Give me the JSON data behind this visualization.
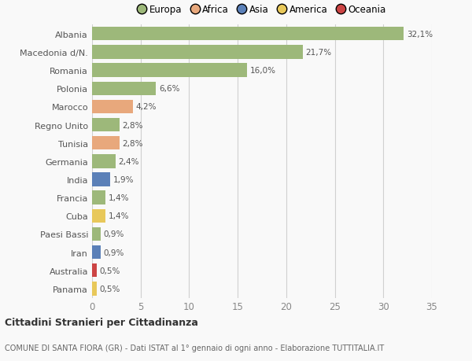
{
  "categories": [
    "Albania",
    "Macedonia d/N.",
    "Romania",
    "Polonia",
    "Marocco",
    "Regno Unito",
    "Tunisia",
    "Germania",
    "India",
    "Francia",
    "Cuba",
    "Paesi Bassi",
    "Iran",
    "Australia",
    "Panama"
  ],
  "values": [
    32.1,
    21.7,
    16.0,
    6.6,
    4.2,
    2.8,
    2.8,
    2.4,
    1.9,
    1.4,
    1.4,
    0.9,
    0.9,
    0.5,
    0.5
  ],
  "labels": [
    "32,1%",
    "21,7%",
    "16,0%",
    "6,6%",
    "4,2%",
    "2,8%",
    "2,8%",
    "2,4%",
    "1,9%",
    "1,4%",
    "1,4%",
    "0,9%",
    "0,9%",
    "0,5%",
    "0,5%"
  ],
  "colors": [
    "#9db87a",
    "#9db87a",
    "#9db87a",
    "#9db87a",
    "#e8a87c",
    "#9db87a",
    "#e8a87c",
    "#9db87a",
    "#5b80b8",
    "#9db87a",
    "#e8c85a",
    "#9db87a",
    "#5b80b8",
    "#cc4444",
    "#e8c85a"
  ],
  "continent_colors": {
    "Europa": "#9db87a",
    "Africa": "#e8a87c",
    "Asia": "#5b80b8",
    "America": "#e8c85a",
    "Oceania": "#cc4444"
  },
  "legend_labels": [
    "Europa",
    "Africa",
    "Asia",
    "America",
    "Oceania"
  ],
  "xlim": [
    0,
    35
  ],
  "xticks": [
    0,
    5,
    10,
    15,
    20,
    25,
    30,
    35
  ],
  "title1": "Cittadini Stranieri per Cittadinanza",
  "title2": "COMUNE DI SANTA FIORA (GR) - Dati ISTAT al 1° gennaio di ogni anno - Elaborazione TUTTITALIA.IT",
  "bg_color": "#f9f9f9",
  "bar_height": 0.75,
  "grid_color": "#d0d0d0"
}
